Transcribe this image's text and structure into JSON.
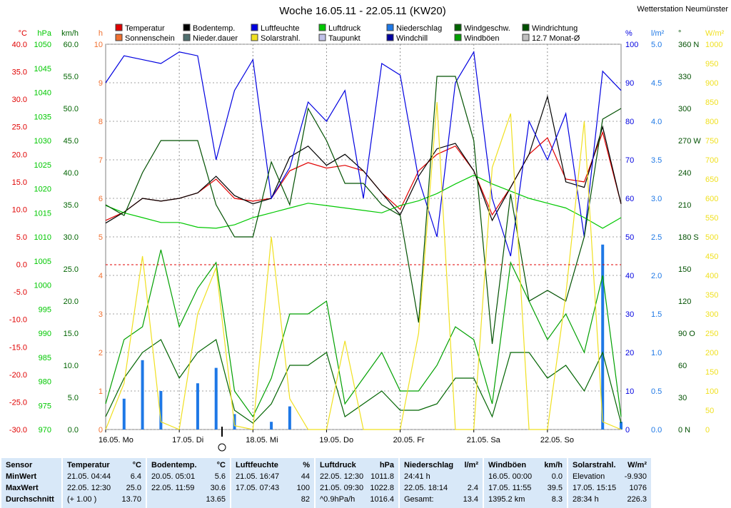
{
  "header": {
    "title": "Woche 16.05.11 - 22.05.11 (KW20)",
    "station": "Wetterstation Neumünster"
  },
  "legend": [
    {
      "label": "Temperatur",
      "color": "#e00000"
    },
    {
      "label": "Bodentemp.",
      "color": "#000000"
    },
    {
      "label": "Luftfeuchte",
      "color": "#0000e0"
    },
    {
      "label": "Luftdruck",
      "color": "#00c800"
    },
    {
      "label": "Niederschlag",
      "color": "#1e78e6"
    },
    {
      "label": "Windgeschw.",
      "color": "#006400"
    },
    {
      "label": "Windrichtung",
      "color": "#005000"
    },
    {
      "label": "Sonnenschein",
      "color": "#f07030"
    },
    {
      "label": "Nieder.dauer",
      "color": "#507070"
    },
    {
      "label": "Solarstrahl.",
      "color": "#f0e020"
    },
    {
      "label": "Taupunkt",
      "color": "#c0c0e8"
    },
    {
      "label": "Windchill",
      "color": "#0000a0"
    },
    {
      "label": "Windböen",
      "color": "#00a000"
    },
    {
      "label": "12.7 Monat-Ø",
      "color": "#c0c0c0"
    }
  ],
  "axes": {
    "temp": {
      "unit": "°C",
      "color": "#e00000",
      "ticks": [
        "40.0",
        "35.0",
        "30.0",
        "25.0",
        "20.0",
        "15.0",
        "10.0",
        "5.0",
        "0.0",
        "-5.0",
        "-10.0",
        "-15.0",
        "-20.0",
        "-25.0",
        "-30.0"
      ]
    },
    "press": {
      "unit": "hPa",
      "color": "#00c800",
      "ticks": [
        "1050",
        "1045",
        "1040",
        "1035",
        "1030",
        "1025",
        "1020",
        "1015",
        "1010",
        "1005",
        "1000",
        "995",
        "990",
        "985",
        "980",
        "975",
        "970"
      ]
    },
    "wind": {
      "unit": "km/h",
      "color": "#006400",
      "ticks": [
        "60.0",
        "55.0",
        "50.0",
        "45.0",
        "40.0",
        "35.0",
        "30.0",
        "25.0",
        "20.0",
        "15.0",
        "10.0",
        "5.0",
        "0.0"
      ]
    },
    "hours": {
      "unit": "h",
      "color": "#f07030",
      "ticks": [
        "10",
        "9",
        "8",
        "7",
        "6",
        "5",
        "4",
        "3",
        "2",
        "1",
        "0"
      ]
    },
    "hum": {
      "unit": "%",
      "color": "#0000e0",
      "ticks": [
        "100",
        "90",
        "80",
        "70",
        "60",
        "50",
        "40",
        "30",
        "20",
        "10",
        "0"
      ]
    },
    "rain": {
      "unit": "l/m²",
      "color": "#1e78e6",
      "ticks": [
        "5.0",
        "4.5",
        "4.0",
        "3.5",
        "3.0",
        "2.5",
        "2.0",
        "1.5",
        "1.0",
        "0.5",
        "0.0"
      ]
    },
    "dir": {
      "unit": "°",
      "color": "#005000",
      "ticks": [
        "360 N",
        "330",
        "300",
        "270 W",
        "240",
        "210",
        "180 S",
        "150",
        "120",
        "90 O",
        "60",
        "30",
        "0 N"
      ]
    },
    "solar": {
      "unit": "W/m²",
      "color": "#f0e020",
      "ticks": [
        "1000",
        "950",
        "900",
        "850",
        "800",
        "750",
        "700",
        "650",
        "600",
        "550",
        "500",
        "450",
        "400",
        "350",
        "300",
        "250",
        "200",
        "150",
        "100",
        "50",
        "0"
      ]
    }
  },
  "x_ticks": [
    "16.05. Mo",
    "17.05. Di",
    "18.05. Mi",
    "19.05. Do",
    "20.05. Fr",
    "21.05. Sa",
    "22.05. So"
  ],
  "chart_data": {
    "type": "line",
    "x_unit": "hour of week (0 = 16.05. 00:00)",
    "x": [
      0,
      6,
      12,
      18,
      24,
      30,
      36,
      42,
      48,
      54,
      60,
      66,
      72,
      78,
      84,
      90,
      96,
      102,
      108,
      114,
      120,
      126,
      132,
      138,
      144,
      150,
      156,
      162,
      168
    ],
    "series": [
      {
        "name": "Temperatur",
        "unit": "°C",
        "values": [
          8.0,
          9.5,
          12.0,
          11.5,
          12.0,
          13.0,
          15.5,
          12.0,
          11.5,
          12.0,
          17.0,
          18.5,
          17.5,
          18.0,
          17.0,
          13.0,
          10.0,
          17.0,
          20.0,
          21.5,
          17.0,
          9.0,
          14.0,
          20.0,
          23.0,
          15.5,
          15.0,
          24.0,
          11.0
        ]
      },
      {
        "name": "Bodentemp.",
        "unit": "°C",
        "values": [
          7.5,
          9.5,
          12.0,
          11.5,
          12.0,
          13.0,
          16.0,
          12.5,
          11.0,
          12.0,
          19.5,
          21.5,
          18.0,
          20.0,
          17.0,
          13.0,
          9.0,
          16.0,
          21.0,
          22.0,
          17.0,
          8.0,
          14.0,
          20.0,
          30.5,
          15.0,
          14.0,
          25.0,
          11.0
        ]
      },
      {
        "name": "Luftfeuchte",
        "unit": "%",
        "values": [
          90,
          97,
          96,
          95,
          98,
          97,
          70,
          88,
          96,
          60,
          68,
          85,
          80,
          88,
          60,
          95,
          92,
          65,
          50,
          90,
          98,
          60,
          45,
          80,
          70,
          82,
          50,
          93,
          88
        ]
      },
      {
        "name": "Luftdruck",
        "unit": "hPa",
        "values": [
          1016.5,
          1015,
          1014,
          1013,
          1013,
          1012,
          1011.8,
          1012.5,
          1014,
          1015,
          1016,
          1017,
          1016.5,
          1016,
          1015.5,
          1015,
          1016.5,
          1017.5,
          1019,
          1021,
          1022.8,
          1021,
          1019.5,
          1018,
          1017,
          1016,
          1014,
          1011.8,
          1014
        ]
      },
      {
        "name": "Windgeschw.",
        "unit": "km/h",
        "values": [
          2,
          8,
          12,
          14,
          8,
          12,
          14,
          3,
          1,
          4,
          10,
          10,
          12,
          2,
          4,
          6,
          3,
          3,
          4,
          8,
          8,
          2,
          12,
          12,
          8,
          10,
          6,
          12,
          1
        ]
      },
      {
        "name": "Windböen",
        "unit": "km/h",
        "values": [
          4,
          14,
          16,
          28,
          16,
          22,
          26,
          6,
          2,
          8,
          18,
          18,
          20,
          4,
          8,
          12,
          6,
          6,
          10,
          16,
          14,
          4,
          26,
          20,
          14,
          18,
          12,
          24,
          2
        ]
      },
      {
        "name": "Windrichtung",
        "unit": "°",
        "values": [
          210,
          200,
          240,
          270,
          270,
          270,
          210,
          180,
          180,
          250,
          210,
          300,
          270,
          230,
          230,
          210,
          200,
          100,
          330,
          330,
          270,
          80,
          220,
          120,
          130,
          120,
          180,
          290,
          300
        ]
      },
      {
        "name": "Solarstrahl.",
        "unit": "W/m²",
        "values": [
          0,
          120,
          450,
          20,
          0,
          300,
          420,
          10,
          0,
          500,
          80,
          0,
          0,
          230,
          0,
          0,
          0,
          250,
          850,
          0,
          0,
          680,
          820,
          0,
          0,
          350,
          800,
          20,
          0
        ]
      },
      {
        "name": "Niederschlag",
        "unit": "l/m²",
        "values": [
          0,
          0.4,
          0.9,
          0.5,
          0,
          0.6,
          0.8,
          0.2,
          0,
          0.1,
          0.3,
          0,
          0,
          0,
          0,
          0,
          0,
          0,
          0,
          0,
          0,
          0,
          0,
          0,
          0,
          0,
          0,
          2.4,
          0.1
        ]
      }
    ],
    "ylim_temp": [
      -30,
      40
    ],
    "ylim_press": [
      970,
      1050
    ],
    "ylim_wind": [
      0,
      60
    ],
    "ylim_hum": [
      0,
      100
    ],
    "ylim_rain": [
      0,
      5
    ],
    "ylim_dir": [
      0,
      360
    ],
    "ylim_solar": [
      0,
      1000
    ]
  },
  "stats": [
    {
      "title": "Sensor",
      "unit": "",
      "rows": [
        [
          "MinWert",
          ""
        ],
        [
          "MaxWert",
          ""
        ],
        [
          "Durchschnitt",
          ""
        ]
      ]
    },
    {
      "title": "Temperatur",
      "unit": "°C",
      "rows": [
        [
          "21.05.  04:44",
          "6.4"
        ],
        [
          "22.05.  12:30",
          "25.0"
        ],
        [
          "(+ 1.00 )",
          "13.70"
        ]
      ]
    },
    {
      "title": "Bodentemp.",
      "unit": "°C",
      "rows": [
        [
          "20.05.  05:01",
          "5.6"
        ],
        [
          "22.05.  11:59",
          "30.6"
        ],
        [
          "",
          "13.65"
        ]
      ]
    },
    {
      "title": "Luftfeuchte",
      "unit": "%",
      "rows": [
        [
          "21.05.  16:47",
          "44"
        ],
        [
          "17.05.  07:43",
          "100"
        ],
        [
          "",
          "82"
        ]
      ]
    },
    {
      "title": "Luftdruck",
      "unit": "hPa",
      "rows": [
        [
          "22.05.  12:30",
          "1011.8"
        ],
        [
          "21.05.  09:30",
          "1022.8"
        ],
        [
          "^0.9hPa/h",
          "1016.4"
        ]
      ]
    },
    {
      "title": "Niederschlag",
      "unit": "l/m²",
      "rows": [
        [
          "24:41 h",
          ""
        ],
        [
          "22.05.  18:14",
          "2.4"
        ],
        [
          "Gesamt:",
          "13.4"
        ]
      ]
    },
    {
      "title": "Windböen",
      "unit": "km/h",
      "rows": [
        [
          "16.05.  00:00",
          "0.0"
        ],
        [
          "17.05.  11:55",
          "39.5"
        ],
        [
          "1395.2 km",
          "8.3"
        ]
      ]
    },
    {
      "title": "Solarstrahl.",
      "unit": "W/m²",
      "rows": [
        [
          "Elevation",
          "-9.930"
        ],
        [
          "17.05.  15:15",
          "1076"
        ],
        [
          "28:34 h",
          "226.3"
        ]
      ]
    }
  ]
}
